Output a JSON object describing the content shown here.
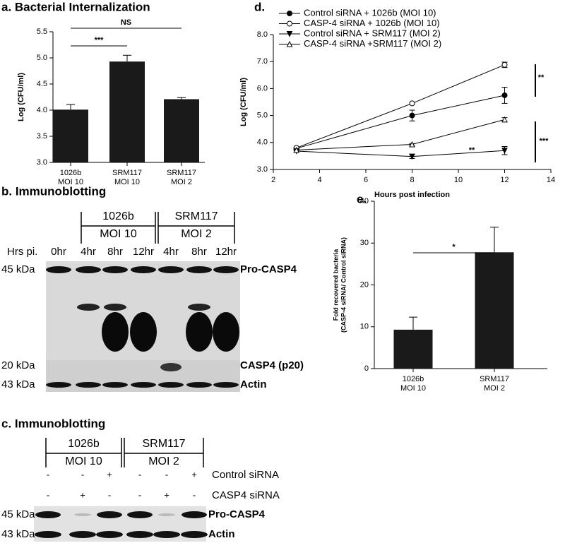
{
  "chart_data": [
    {
      "type": "bar",
      "title": "a. Bacterial Internalization",
      "ylabel": "Log (CFU/ml)",
      "categories": [
        [
          "1026b",
          "MOI 10"
        ],
        [
          "SRM117",
          "MOI 10"
        ],
        [
          "SRM117",
          "MOI 2"
        ]
      ],
      "values": [
        4.01,
        4.93,
        4.21
      ],
      "errors": [
        0.1,
        0.12,
        0.03
      ],
      "color": "#1a1a1a",
      "ylim": [
        3,
        5.5
      ],
      "yticks": [
        {
          "value": 3,
          "label": "3.0"
        },
        {
          "value": 3.5,
          "label": "3.5"
        },
        {
          "value": 4,
          "label": "4.0"
        },
        {
          "value": 4.5,
          "label": "4.5"
        },
        {
          "value": 5,
          "label": "5.0"
        },
        {
          "value": 5.5,
          "label": "5.5"
        }
      ],
      "annotations": [
        "***",
        "NS"
      ]
    },
    {
      "type": "line",
      "title": "d.",
      "xlabel": "Hours post infection",
      "ylabel": "Log (CFU/ml)",
      "x": [
        3,
        8,
        12
      ],
      "series": [
        {
          "name": "Control siRNA + 1026b (MOI 10)",
          "color": "#000000",
          "marker": "circle",
          "marker_fill": "#000000",
          "values": [
            3.78,
            5.0,
            5.75
          ],
          "errors": [
            0.05,
            0.2,
            0.3
          ]
        },
        {
          "name": "CASP-4 siRNA + 1026b (MOI 10)",
          "color": "#000000",
          "marker": "circle",
          "marker_fill": "#ffffff",
          "values": [
            3.8,
            5.45,
            6.88
          ],
          "errors": [
            0.03,
            0.03,
            0.1
          ]
        },
        {
          "name": "Control siRNA + SRM117 (MOI 2)",
          "color": "#000000",
          "marker": "triangle-down",
          "marker_fill": "#000000",
          "values": [
            3.68,
            3.48,
            3.7
          ],
          "errors": [
            0.05,
            0.07,
            0.15
          ]
        },
        {
          "name": "CASP-4 siRNA +SRM117 (MOI 2)",
          "color": "#000000",
          "marker": "triangle-up",
          "marker_fill": "#ffffff",
          "values": [
            3.72,
            3.93,
            4.85
          ],
          "errors": [
            0.03,
            0.03,
            0.07
          ]
        }
      ],
      "xlim": [
        2,
        14
      ],
      "xticks": [
        2,
        4,
        6,
        8,
        10,
        12,
        14
      ],
      "ylim": [
        3,
        8
      ],
      "yticks": [
        {
          "value": 3,
          "label": "3.0"
        },
        {
          "value": 4,
          "label": "4.0"
        },
        {
          "value": 5,
          "label": "5.0"
        },
        {
          "value": 6,
          "label": "6.0"
        },
        {
          "value": 7,
          "label": "7.0"
        },
        {
          "value": 8,
          "label": "8.0"
        }
      ],
      "annotations": [
        "**",
        "***",
        "**"
      ]
    },
    {
      "type": "bar",
      "title": "e.",
      "ylabel": [
        "Fold recovered bacteria",
        "(CASP-4 siRNA/ Control siRNA)"
      ],
      "categories": [
        [
          "1026b",
          "MOI 10"
        ],
        [
          "SRM117",
          "MOI 2"
        ]
      ],
      "values": [
        9.3,
        27.8
      ],
      "errors": [
        3,
        6
      ],
      "color": "#1a1a1a",
      "ylim": [
        0,
        40
      ],
      "yticks": [
        0,
        10,
        20,
        30,
        40
      ],
      "annotations": [
        "*"
      ]
    }
  ],
  "blot_b": {
    "title": "b. Immunoblotting",
    "groups": [
      [
        "1026b",
        "MOI 10"
      ],
      [
        "SRM117",
        "MOI 2"
      ]
    ],
    "row_label": "Hrs pi.",
    "lanes": [
      "0hr",
      "4hr",
      "8hr",
      "12hr",
      "4hr",
      "8hr",
      "12hr"
    ],
    "markers": [
      "45 kDa",
      "20 kDa",
      "43 kDa"
    ],
    "bands": [
      "Pro-CASP4",
      "CASP4 (p20)",
      "Actin"
    ]
  },
  "blot_c": {
    "title": "c. Immunoblotting",
    "groups": [
      [
        "1026b",
        "MOI 10"
      ],
      [
        "SRM117",
        "MOI 2"
      ]
    ],
    "treatments": [
      {
        "name": "Control siRNA",
        "signs": [
          "-",
          "-",
          "+",
          "-",
          "-",
          "+"
        ]
      },
      {
        "name": "CASP4 siRNA",
        "signs": [
          "-",
          "+",
          "-",
          "-",
          "+",
          "-"
        ]
      }
    ],
    "markers": [
      "45 kDa",
      "43 kDa"
    ],
    "bands": [
      "Pro-CASP4",
      "Actin"
    ]
  }
}
